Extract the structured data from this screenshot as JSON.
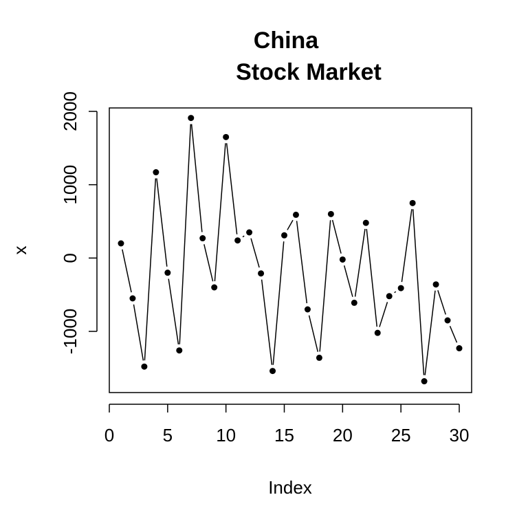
{
  "chart_data": {
    "type": "line",
    "title_lines": [
      "China",
      "Stock Market"
    ],
    "xlabel": "Index",
    "ylabel": "x",
    "xlim": [
      0,
      30
    ],
    "ylim": [
      -1800,
      2000
    ],
    "x_ticks": [
      0,
      5,
      10,
      15,
      20,
      25,
      30
    ],
    "y_ticks": [
      -1000,
      0,
      1000,
      2000
    ],
    "grid": false,
    "style": "points connected by lines with gaps (R type='b')",
    "series": [
      {
        "x": [
          1,
          2,
          3,
          4,
          5,
          6,
          7,
          8,
          9,
          10,
          11,
          12,
          13,
          14,
          15,
          16,
          17,
          18,
          19,
          20,
          21,
          22,
          23,
          24,
          25,
          26,
          27,
          28,
          29,
          30
        ],
        "values": [
          200,
          -550,
          -1480,
          1170,
          -200,
          -1260,
          1910,
          270,
          -400,
          1650,
          240,
          350,
          -210,
          -1540,
          310,
          590,
          -700,
          -1360,
          600,
          -20,
          -610,
          480,
          -1020,
          -520,
          -410,
          750,
          -1680,
          -360,
          -850,
          -1230
        ]
      }
    ]
  }
}
